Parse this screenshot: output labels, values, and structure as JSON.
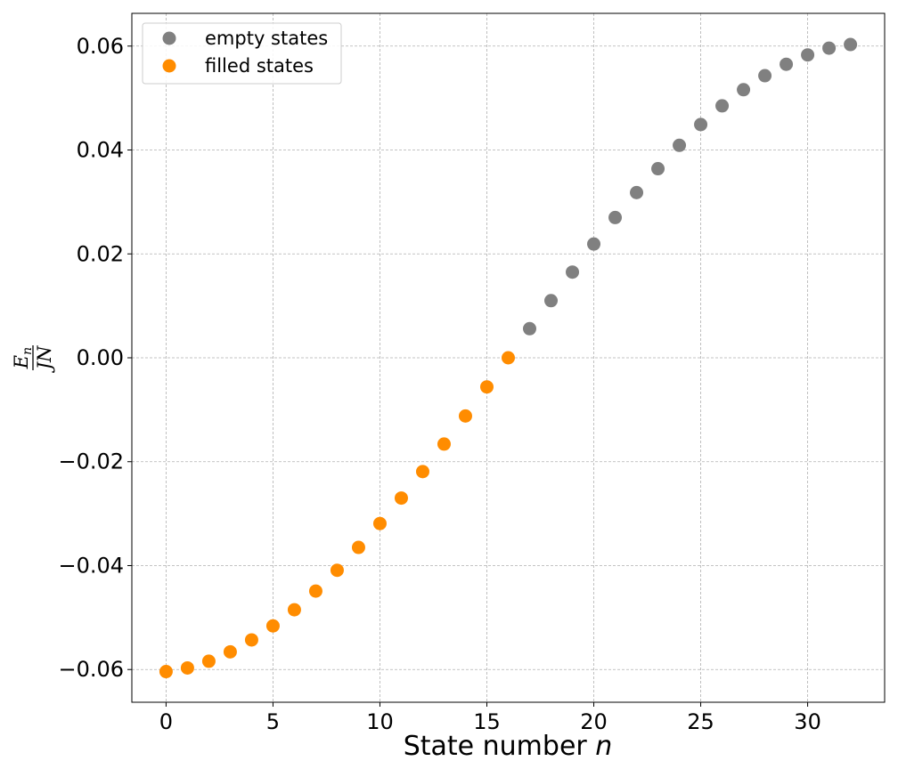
{
  "chart_data": {
    "type": "scatter",
    "title": "",
    "xlabel": "State number",
    "xlabel_var": "n",
    "ylabel_num": "E",
    "ylabel_num_sub": "n",
    "ylabel_den": "JN",
    "xlim": [
      -1.6,
      33.6
    ],
    "ylim": [
      -0.0663,
      0.0663
    ],
    "xticks": [
      0,
      5,
      10,
      15,
      20,
      25,
      30
    ],
    "xtick_labels": [
      "0",
      "5",
      "10",
      "15",
      "20",
      "25",
      "30"
    ],
    "yticks": [
      -0.06,
      -0.04,
      -0.02,
      0.0,
      0.02,
      0.04,
      0.06
    ],
    "ytick_labels": [
      "−0.06",
      "−0.04",
      "−0.02",
      "0.00",
      "0.02",
      "0.04",
      "0.06"
    ],
    "grid": true,
    "legend_position": "top-left",
    "series": [
      {
        "name": "empty states",
        "color": "#808080",
        "x": [
          17,
          18,
          19,
          20,
          21,
          22,
          23,
          24,
          25,
          26,
          27,
          28,
          29,
          30,
          31,
          32
        ],
        "y": [
          0.0056,
          0.011,
          0.0165,
          0.0219,
          0.027,
          0.0318,
          0.0364,
          0.0409,
          0.0449,
          0.0485,
          0.0516,
          0.0543,
          0.0565,
          0.0583,
          0.0596,
          0.0603
        ]
      },
      {
        "name": "filled states",
        "color": "#ff8c00",
        "x": [
          0,
          1,
          2,
          3,
          4,
          5,
          6,
          7,
          8,
          9,
          10,
          11,
          12,
          13,
          14,
          15,
          16
        ],
        "y": [
          -0.0604,
          -0.0597,
          -0.0584,
          -0.0566,
          -0.0543,
          -0.0516,
          -0.0485,
          -0.0449,
          -0.0409,
          -0.0365,
          -0.0319,
          -0.027,
          -0.0219,
          -0.0166,
          -0.0112,
          -0.0056,
          0.0
        ]
      }
    ]
  }
}
